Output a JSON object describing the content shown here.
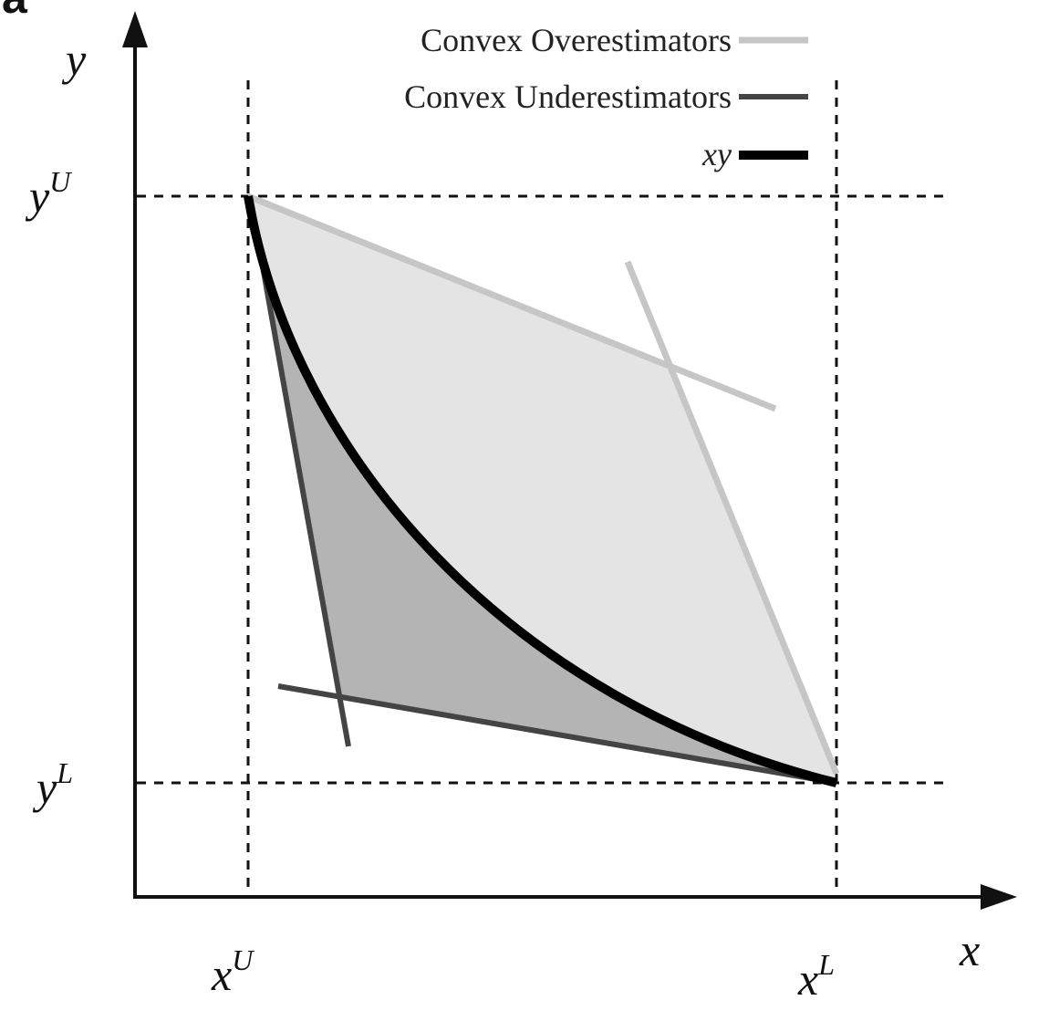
{
  "panel_label": "a",
  "axes": {
    "x": "x",
    "y": "y"
  },
  "ticks": {
    "x": [
      {
        "base": "x",
        "sup": "U"
      },
      {
        "base": "x",
        "sup": "L"
      }
    ],
    "y": [
      {
        "base": "y",
        "sup": "U"
      },
      {
        "base": "y",
        "sup": "L"
      }
    ]
  },
  "legend": [
    "Convex Overestimators",
    "Convex Underestimators",
    "xy"
  ]
}
